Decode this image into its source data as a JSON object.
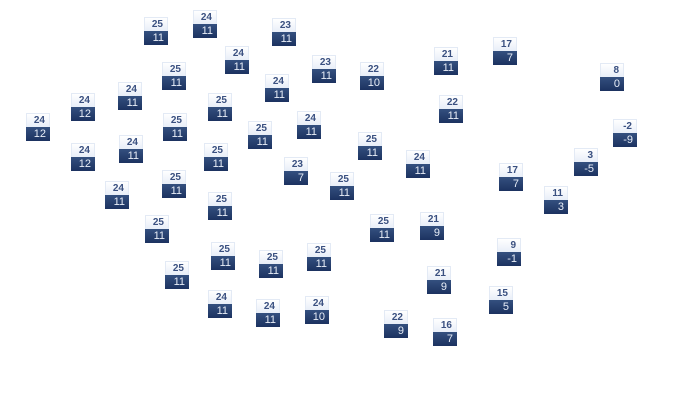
{
  "markers": [
    {
      "high": "25",
      "low": "11"
    },
    {
      "high": "24",
      "low": "11"
    },
    {
      "high": "23",
      "low": "11"
    },
    {
      "high": "24",
      "low": "11"
    },
    {
      "high": "23",
      "low": "11"
    },
    {
      "high": "25",
      "low": "11"
    },
    {
      "high": "24",
      "low": "11"
    },
    {
      "high": "24",
      "low": "11"
    },
    {
      "high": "24",
      "low": "12"
    },
    {
      "high": "25",
      "low": "11"
    },
    {
      "high": "24",
      "low": "12"
    },
    {
      "high": "25",
      "low": "11"
    },
    {
      "high": "25",
      "low": "11"
    },
    {
      "high": "24",
      "low": "11"
    },
    {
      "high": "24",
      "low": "11"
    },
    {
      "high": "24",
      "low": "12"
    },
    {
      "high": "25",
      "low": "11"
    },
    {
      "high": "23",
      "low": "7"
    },
    {
      "high": "25",
      "low": "11"
    },
    {
      "high": "25",
      "low": "11"
    },
    {
      "high": "24",
      "low": "11"
    },
    {
      "high": "25",
      "low": "11"
    },
    {
      "high": "25",
      "low": "11"
    },
    {
      "high": "25",
      "low": "11"
    },
    {
      "high": "25",
      "low": "11"
    },
    {
      "high": "25",
      "low": "11"
    },
    {
      "high": "25",
      "low": "11"
    },
    {
      "high": "24",
      "low": "11"
    },
    {
      "high": "24",
      "low": "11"
    },
    {
      "high": "24",
      "low": "10"
    },
    {
      "high": "22",
      "low": "10"
    },
    {
      "high": "21",
      "low": "11"
    },
    {
      "high": "17",
      "low": "7"
    },
    {
      "high": "8",
      "low": "0"
    },
    {
      "high": "22",
      "low": "11"
    },
    {
      "high": "25",
      "low": "11"
    },
    {
      "high": "24",
      "low": "11"
    },
    {
      "high": "-2",
      "low": "-9"
    },
    {
      "high": "3",
      "low": "-5"
    },
    {
      "high": "17",
      "low": "7"
    },
    {
      "high": "11",
      "low": "3"
    },
    {
      "high": "25",
      "low": "11"
    },
    {
      "high": "21",
      "low": "9"
    },
    {
      "high": "9",
      "low": "-1"
    },
    {
      "high": "21",
      "low": "9"
    },
    {
      "high": "15",
      "low": "5"
    },
    {
      "high": "22",
      "low": "9"
    },
    {
      "high": "16",
      "low": "7"
    }
  ],
  "colors": {
    "high_bg": "#f0f4fb",
    "low_bg": "#24396a",
    "high_text": "#3a5080",
    "low_text": "#e8eef8"
  }
}
